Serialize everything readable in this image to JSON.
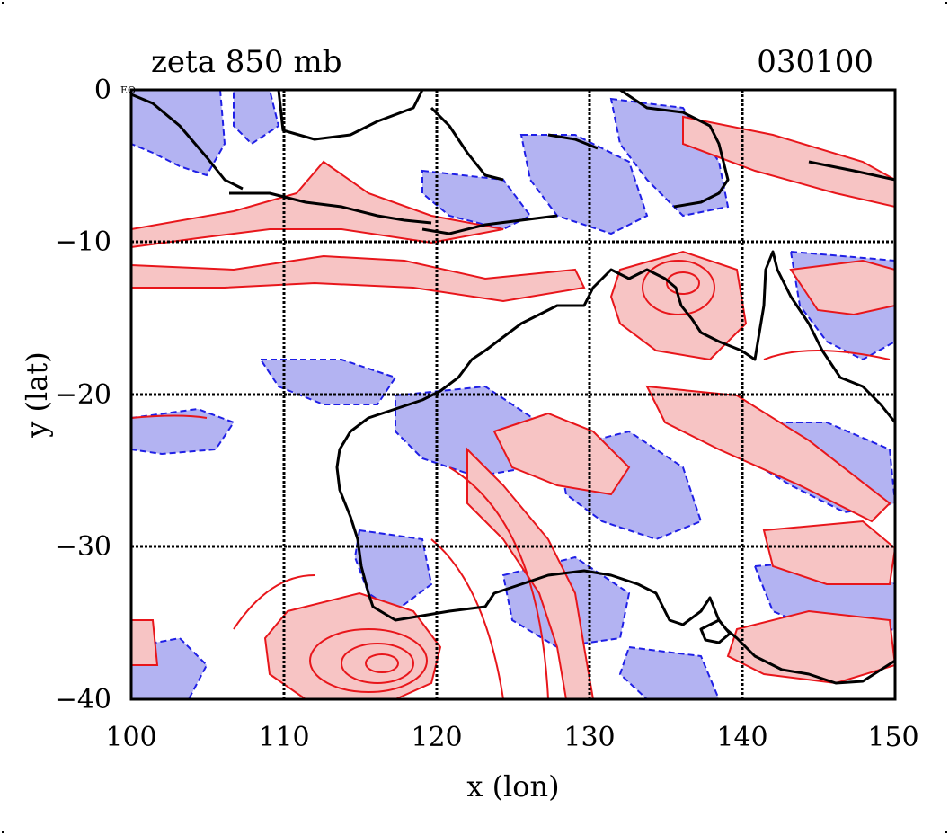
{
  "figure": {
    "title_left": "zeta 850 mb",
    "title_right": "030100",
    "xlabel": "x (lon)",
    "ylabel": "y (lat)",
    "corner_tag": "EQ",
    "xlim": [
      100,
      150
    ],
    "ylim": [
      -40,
      0
    ],
    "x_ticks": [
      "100",
      "110",
      "120",
      "130",
      "140",
      "150"
    ],
    "y_ticks": [
      "0",
      "−10",
      "−20",
      "−30",
      "−40"
    ],
    "grid": true,
    "grid_style": "dotted-black",
    "colors": {
      "positive_fill": "#f7c4c4",
      "positive_line": "#e8161b",
      "negative_fill": "#b3b3f2",
      "negative_line": "#1f1fe6",
      "coastline": "#000000"
    },
    "map_region": "Australia / Indonesia, 850 mb relative vorticity"
  }
}
